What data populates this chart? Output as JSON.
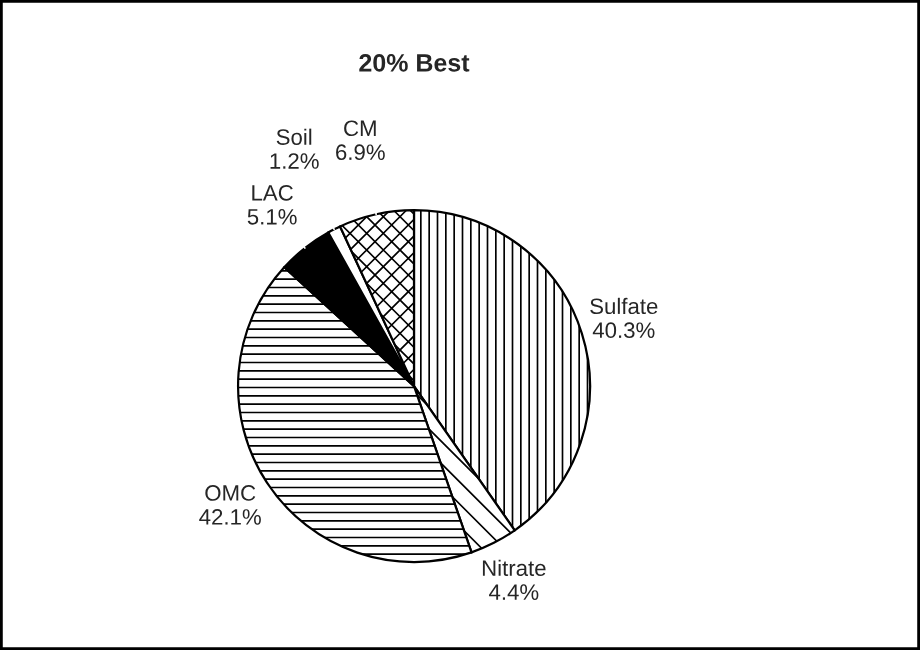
{
  "chart_data": {
    "type": "pie",
    "title": "20% Best",
    "categories": [
      "Sulfate",
      "Nitrate",
      "OMC",
      "LAC",
      "Soil",
      "CM"
    ],
    "values": [
      40.3,
      4.4,
      42.1,
      5.1,
      1.2,
      6.9
    ],
    "colors": [
      "#ffffff",
      "#ffffff",
      "#ffffff",
      "#000000",
      "#ffffff",
      "#ffffff"
    ],
    "value_labels": [
      "40.3%",
      "4.4%",
      "42.1%",
      "5.1%",
      "1.2%",
      "6.9%"
    ]
  }
}
